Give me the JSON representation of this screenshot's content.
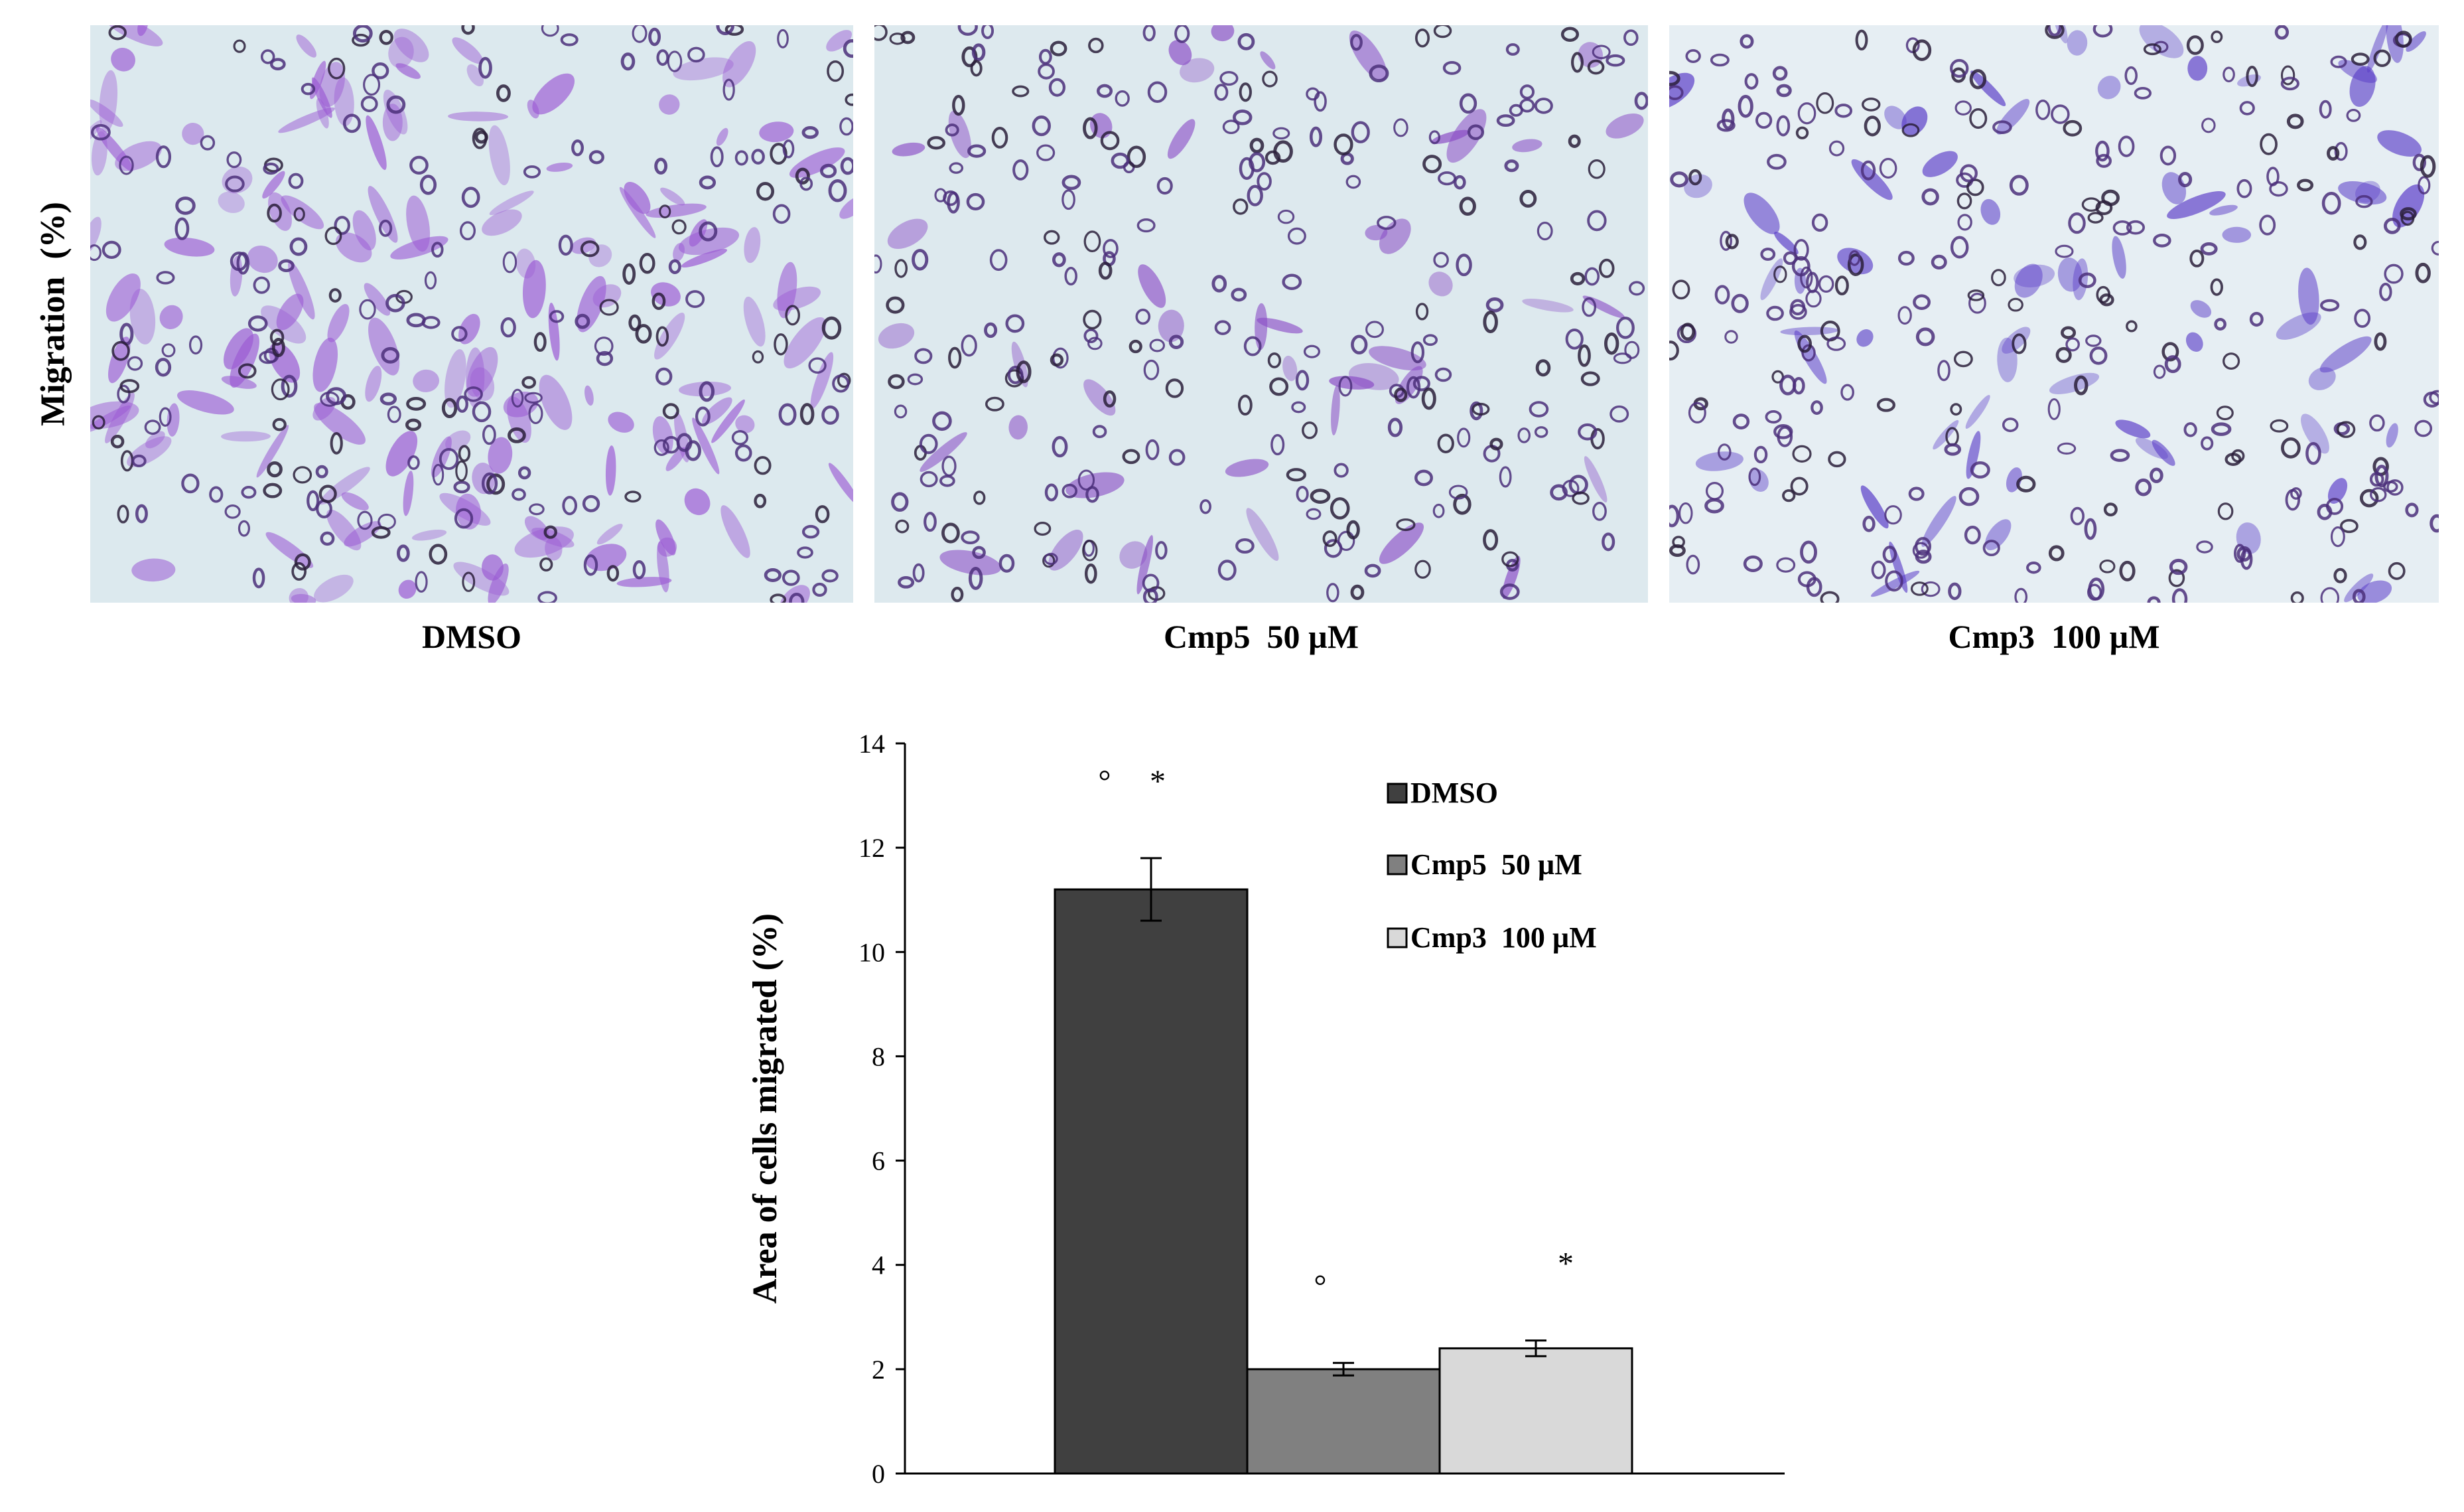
{
  "figure": {
    "side_ylabel": "Migration  (%)",
    "panels": [
      {
        "label": "DMSO",
        "image": "micrograph-dense-purple-cells",
        "stain_color": "#9b5ad4",
        "background": "#dce9ee"
      },
      {
        "label": "Cmp5  50 µM",
        "image": "micrograph-sparse-purple-cells",
        "stain_color": "#8a4cc6",
        "background": "#dde9ee"
      },
      {
        "label": "Cmp3  100 µM",
        "image": "micrograph-blue-violet-cells",
        "stain_color": "#5a3cc8",
        "background": "#e6eef3"
      }
    ]
  },
  "chart_data": {
    "type": "bar",
    "title": "",
    "xlabel": "",
    "ylabel": "Area of cells migrated  (%)",
    "ylim": [
      0,
      14
    ],
    "yticks": [
      0,
      2,
      4,
      6,
      8,
      10,
      12,
      14
    ],
    "grid": false,
    "legend_position": "top-right",
    "series": [
      {
        "name": "DMSO",
        "value": 11.2,
        "error": 0.6,
        "color": "#404040",
        "annotations": [
          "°",
          "*"
        ]
      },
      {
        "name": "Cmp5  50 µM",
        "value": 2.0,
        "error": 0.12,
        "color": "#808080",
        "annotations": [
          "°"
        ]
      },
      {
        "name": "Cmp3  100 µM",
        "value": 2.4,
        "error": 0.15,
        "color": "#d9d9d9",
        "annotations": [
          "*"
        ]
      }
    ]
  }
}
